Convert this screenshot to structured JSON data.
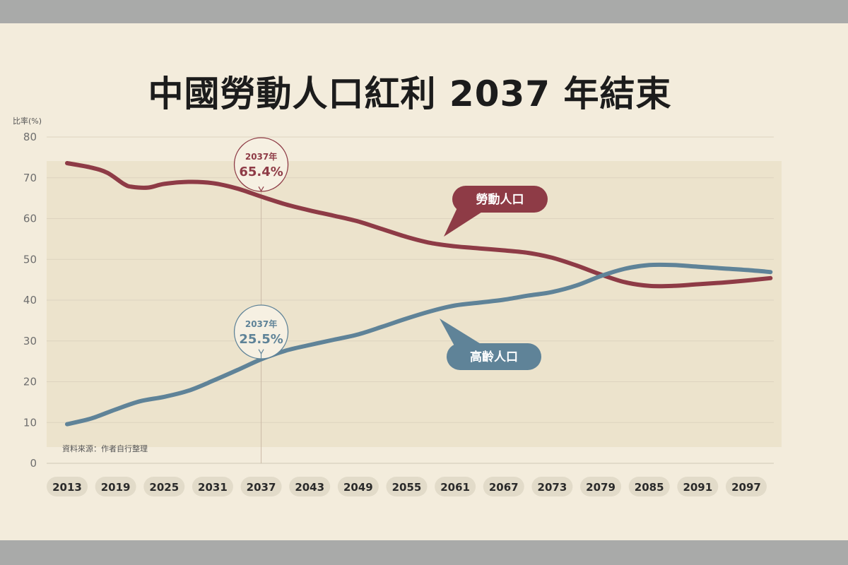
{
  "chart_data": {
    "type": "line",
    "title": "中國勞動人口紅利 2037 年結束",
    "ylabel": "比率(%)",
    "xlabel": "",
    "ylim": [
      0,
      80
    ],
    "yticks": [
      0,
      10,
      20,
      30,
      40,
      50,
      60,
      70,
      80
    ],
    "xlim": [
      2013,
      2100
    ],
    "xticks": [
      2013,
      2019,
      2025,
      2031,
      2037,
      2043,
      2049,
      2055,
      2061,
      2067,
      2073,
      2079,
      2085,
      2091,
      2097
    ],
    "grid": true,
    "source": "資料來源：作者自行整理",
    "series": [
      {
        "name": "勞動人口",
        "color": "#8e3b46",
        "points": [
          [
            2013,
            73.6
          ],
          [
            2016,
            72.5
          ],
          [
            2018,
            71.2
          ],
          [
            2020,
            68.5
          ],
          [
            2021,
            67.8
          ],
          [
            2023,
            67.6
          ],
          [
            2025,
            68.5
          ],
          [
            2028,
            69.0
          ],
          [
            2031,
            68.7
          ],
          [
            2034,
            67.4
          ],
          [
            2037,
            65.4
          ],
          [
            2040,
            63.5
          ],
          [
            2043,
            62.0
          ],
          [
            2046,
            60.7
          ],
          [
            2049,
            59.3
          ],
          [
            2052,
            57.4
          ],
          [
            2055,
            55.5
          ],
          [
            2058,
            54.0
          ],
          [
            2061,
            53.2
          ],
          [
            2064,
            52.7
          ],
          [
            2067,
            52.2
          ],
          [
            2070,
            51.6
          ],
          [
            2073,
            50.4
          ],
          [
            2076,
            48.5
          ],
          [
            2079,
            46.3
          ],
          [
            2082,
            44.4
          ],
          [
            2085,
            43.5
          ],
          [
            2088,
            43.5
          ],
          [
            2091,
            43.9
          ],
          [
            2094,
            44.3
          ],
          [
            2097,
            44.8
          ],
          [
            2100,
            45.4
          ]
        ]
      },
      {
        "name": "高齡人口",
        "color": "#5f8398",
        "points": [
          [
            2013,
            9.6
          ],
          [
            2016,
            11.0
          ],
          [
            2019,
            13.2
          ],
          [
            2022,
            15.2
          ],
          [
            2025,
            16.3
          ],
          [
            2028,
            17.8
          ],
          [
            2031,
            20.2
          ],
          [
            2034,
            22.8
          ],
          [
            2037,
            25.5
          ],
          [
            2040,
            27.6
          ],
          [
            2043,
            29.0
          ],
          [
            2046,
            30.3
          ],
          [
            2049,
            31.6
          ],
          [
            2052,
            33.5
          ],
          [
            2055,
            35.5
          ],
          [
            2058,
            37.3
          ],
          [
            2061,
            38.7
          ],
          [
            2064,
            39.4
          ],
          [
            2067,
            40.1
          ],
          [
            2070,
            41.1
          ],
          [
            2073,
            42.0
          ],
          [
            2076,
            43.6
          ],
          [
            2079,
            45.9
          ],
          [
            2082,
            47.7
          ],
          [
            2085,
            48.6
          ],
          [
            2088,
            48.6
          ],
          [
            2091,
            48.2
          ],
          [
            2094,
            47.8
          ],
          [
            2097,
            47.4
          ],
          [
            2100,
            46.9
          ]
        ]
      }
    ],
    "annotations": [
      {
        "year_label": "2037年",
        "value_label": "65.4%",
        "x": 2037,
        "y": 65.4,
        "series": "勞動人口"
      },
      {
        "year_label": "2037年",
        "value_label": "25.5%",
        "x": 2037,
        "y": 25.5,
        "series": "高齡人口"
      }
    ],
    "legend_labels": [
      "勞動人口",
      "高齡人口"
    ]
  }
}
